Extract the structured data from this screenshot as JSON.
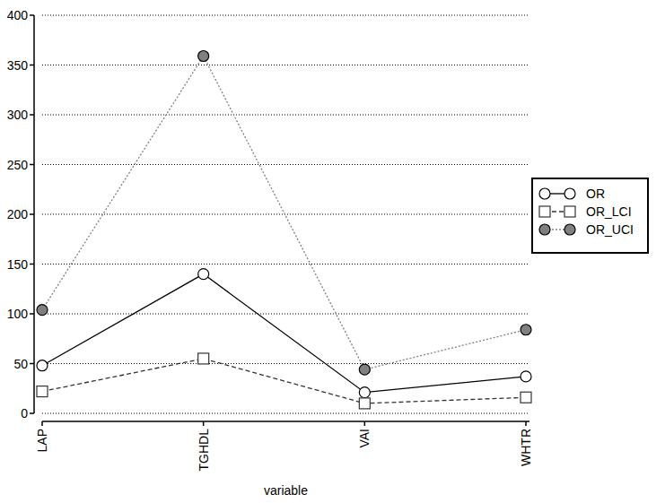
{
  "chart_data": {
    "type": "line",
    "x_label": "variable",
    "categories": [
      "LAP",
      "TGHDL",
      "VAI",
      "WHTR"
    ],
    "series": [
      {
        "name": "OR",
        "color": "#000000",
        "marker": "circle-open",
        "line_style": "solid",
        "values": [
          48,
          140,
          21,
          37
        ]
      },
      {
        "name": "OR_LCI",
        "color": "#333333",
        "marker": "square-open",
        "line_style": "dashed",
        "values": [
          22,
          55,
          10,
          16
        ]
      },
      {
        "name": "OR_UCI",
        "color": "#808080",
        "marker": "circle",
        "line_style": "dotted",
        "values": [
          104,
          359,
          44,
          84
        ]
      }
    ],
    "ylim": [
      0,
      400
    ],
    "yticks": [
      0,
      50,
      100,
      150,
      200,
      250,
      300,
      350,
      400
    ],
    "grid": true,
    "legend": "right"
  }
}
